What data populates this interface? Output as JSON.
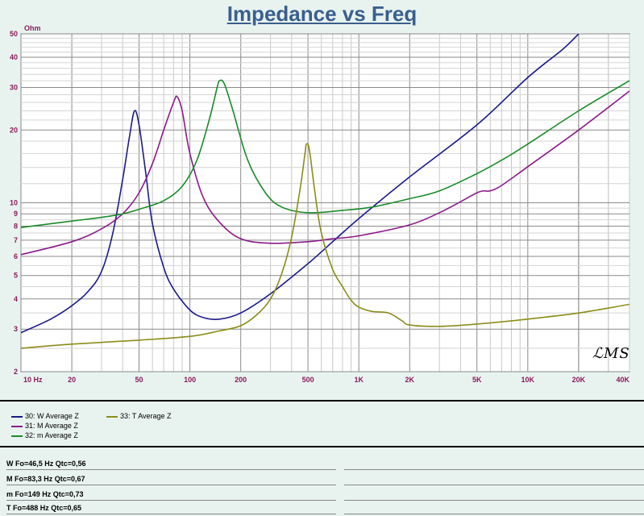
{
  "chart_data": {
    "type": "line",
    "title": "Impedance vs Freq",
    "y_unit": "Ohm",
    "x_scale": "log",
    "y_scale": "log",
    "xlim": [
      10,
      40000
    ],
    "ylim": [
      2,
      50
    ],
    "x_ticks": [
      10,
      20,
      50,
      100,
      200,
      500,
      1000,
      2000,
      5000,
      10000,
      20000,
      40000
    ],
    "x_tick_labels": [
      "10  Hz",
      "20",
      "50",
      "100",
      "200",
      "500",
      "1K",
      "2K",
      "5K",
      "10K",
      "20K",
      "40K"
    ],
    "y_ticks": [
      2,
      3,
      4,
      5,
      6,
      7,
      8,
      9,
      10,
      20,
      30,
      40,
      50
    ],
    "y_tick_labels": [
      "2",
      "3",
      "4",
      "5",
      "6",
      "7",
      "8",
      "9",
      "10",
      "20",
      "30",
      "40",
      "50"
    ],
    "grid": true,
    "series": [
      {
        "name": "30: W Average  Z",
        "color": "#1a1a8c",
        "points": [
          [
            10,
            2.9
          ],
          [
            15,
            3.3
          ],
          [
            20,
            3.75
          ],
          [
            25,
            4.3
          ],
          [
            30,
            5.2
          ],
          [
            35,
            7.5
          ],
          [
            40,
            12.5
          ],
          [
            44,
            19
          ],
          [
            47,
            24
          ],
          [
            50,
            21
          ],
          [
            55,
            13
          ],
          [
            60,
            8.2
          ],
          [
            70,
            5.4
          ],
          [
            80,
            4.4
          ],
          [
            100,
            3.6
          ],
          [
            120,
            3.35
          ],
          [
            150,
            3.3
          ],
          [
            200,
            3.5
          ],
          [
            300,
            4.2
          ],
          [
            500,
            5.6
          ],
          [
            700,
            6.9
          ],
          [
            1000,
            8.6
          ],
          [
            2000,
            12.8
          ],
          [
            5000,
            21
          ],
          [
            10000,
            33
          ],
          [
            16000,
            43
          ],
          [
            20000,
            50
          ]
        ]
      },
      {
        "name": "31: M Average Z",
        "color": "#8b1a8b",
        "points": [
          [
            10,
            6.1
          ],
          [
            20,
            6.9
          ],
          [
            30,
            7.8
          ],
          [
            40,
            9.0
          ],
          [
            50,
            11
          ],
          [
            60,
            14.5
          ],
          [
            70,
            20
          ],
          [
            80,
            26
          ],
          [
            84,
            27.5
          ],
          [
            90,
            24
          ],
          [
            100,
            16
          ],
          [
            120,
            10.5
          ],
          [
            150,
            8.3
          ],
          [
            200,
            7.1
          ],
          [
            300,
            6.8
          ],
          [
            500,
            6.9
          ],
          [
            700,
            7.1
          ],
          [
            1000,
            7.3
          ],
          [
            2000,
            8.1
          ],
          [
            3000,
            9.1
          ],
          [
            4000,
            10.1
          ],
          [
            5000,
            11.0
          ],
          [
            5500,
            11.2
          ],
          [
            6000,
            11.2
          ],
          [
            7000,
            11.8
          ],
          [
            10000,
            14.1
          ],
          [
            20000,
            20
          ],
          [
            40000,
            29
          ]
        ]
      },
      {
        "name": "32: m Average Z",
        "color": "#1a8b2a",
        "points": [
          [
            10,
            7.9
          ],
          [
            20,
            8.4
          ],
          [
            30,
            8.7
          ],
          [
            40,
            9.0
          ],
          [
            50,
            9.4
          ],
          [
            70,
            10.2
          ],
          [
            90,
            11.7
          ],
          [
            110,
            15
          ],
          [
            130,
            22
          ],
          [
            145,
            30
          ],
          [
            150,
            32
          ],
          [
            160,
            31
          ],
          [
            180,
            24
          ],
          [
            220,
            15
          ],
          [
            280,
            11
          ],
          [
            350,
            9.6
          ],
          [
            500,
            9.1
          ],
          [
            800,
            9.3
          ],
          [
            1200,
            9.6
          ],
          [
            2000,
            10.4
          ],
          [
            3000,
            11.2
          ],
          [
            5000,
            13.2
          ],
          [
            7000,
            15
          ],
          [
            10000,
            17.5
          ],
          [
            20000,
            24
          ],
          [
            40000,
            32
          ]
        ]
      },
      {
        "name": "33: T Average Z",
        "color": "#8c8c1a",
        "points": [
          [
            10,
            2.5
          ],
          [
            20,
            2.6
          ],
          [
            50,
            2.7
          ],
          [
            100,
            2.8
          ],
          [
            150,
            2.95
          ],
          [
            200,
            3.1
          ],
          [
            250,
            3.45
          ],
          [
            300,
            4.0
          ],
          [
            350,
            5.1
          ],
          [
            400,
            7.2
          ],
          [
            450,
            11.5
          ],
          [
            480,
            16
          ],
          [
            490,
            17.5
          ],
          [
            510,
            16.5
          ],
          [
            550,
            11
          ],
          [
            600,
            7.5
          ],
          [
            700,
            5.3
          ],
          [
            800,
            4.5
          ],
          [
            900,
            3.95
          ],
          [
            1000,
            3.7
          ],
          [
            1200,
            3.55
          ],
          [
            1500,
            3.5
          ],
          [
            1800,
            3.25
          ],
          [
            2000,
            3.12
          ],
          [
            3000,
            3.08
          ],
          [
            5000,
            3.15
          ],
          [
            10000,
            3.3
          ],
          [
            20000,
            3.5
          ],
          [
            40000,
            3.8
          ]
        ]
      }
    ]
  },
  "notes": [
    "W Fo=46,5 Hz Qtc=0,56",
    "M Fo=83,3 Hz Qtc=0,67",
    "m Fo=149 Hz Qtc=0,73",
    "T Fo=488 Hz Qtc=0,65"
  ],
  "logo_text": "LMS"
}
